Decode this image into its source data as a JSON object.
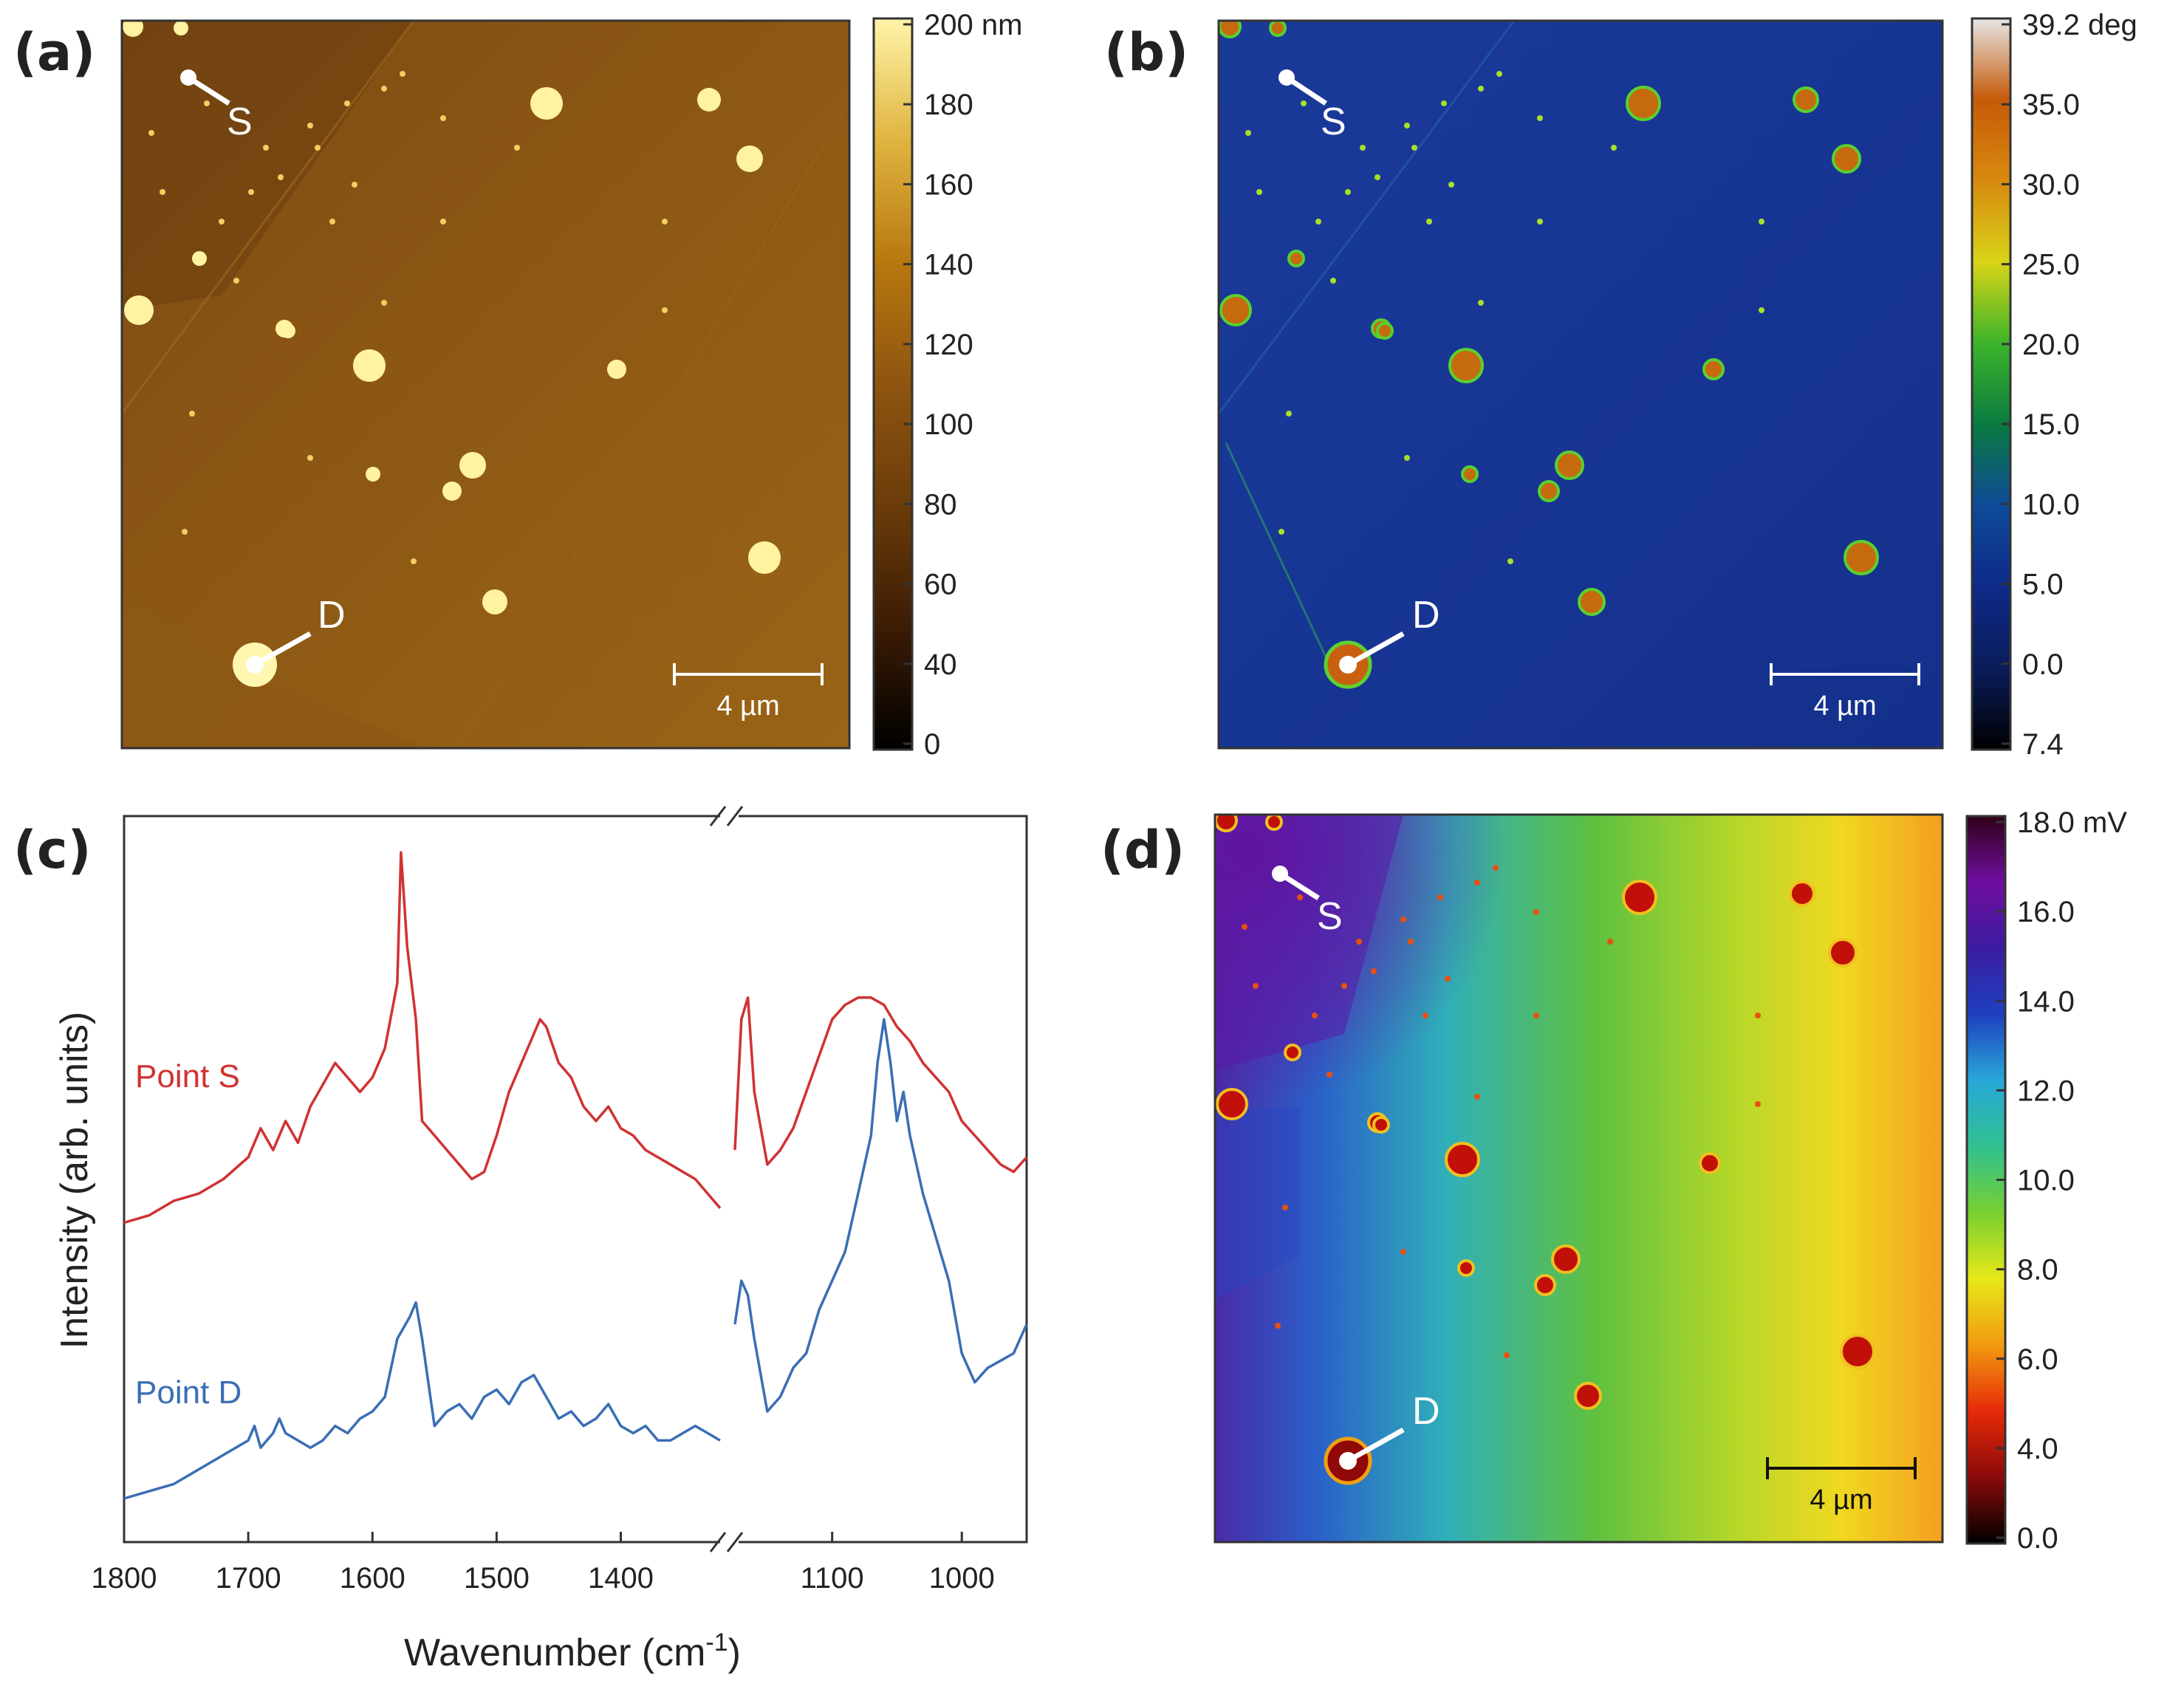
{
  "colors": {
    "topo_stops": [
      "#000000",
      "#3c1c05",
      "#6b3c0a",
      "#8f5510",
      "#b8780f",
      "#e0b440",
      "#fff4a8"
    ],
    "phase_stops": [
      "#000000",
      "#0a1c5a",
      "#0e2a88",
      "#0e4a98",
      "#0a7a40",
      "#3cb42a",
      "#d8d418",
      "#d88a10",
      "#c65a08",
      "#e6e6e6"
    ],
    "kpfm_stops": [
      "#000000",
      "#8a0a0a",
      "#e62a08",
      "#f29a10",
      "#e8e818",
      "#78d030",
      "#30c090",
      "#28a8d8",
      "#1e40c0",
      "#3a1ca0",
      "#700ea0",
      "#300018"
    ],
    "point_s": "#d03232",
    "point_d": "#3a6eb4"
  },
  "panels": {
    "a": {
      "label": "(a)",
      "scalebar": "4 µm",
      "colorbar": {
        "labels": [
          "200 nm",
          "180",
          "160",
          "140",
          "120",
          "100",
          "80",
          "60",
          "40",
          "0"
        ]
      },
      "markers": {
        "s": "S",
        "d": "D"
      }
    },
    "b": {
      "label": "(b)",
      "scalebar": "4 µm",
      "colorbar": {
        "labels": [
          "39.2 deg",
          "35.0",
          "30.0",
          "25.0",
          "20.0",
          "15.0",
          "10.0",
          "5.0",
          "0.0",
          "7.4"
        ]
      },
      "markers": {
        "s": "S",
        "d": "D"
      }
    },
    "c": {
      "label": "(c)"
    },
    "d": {
      "label": "(d)",
      "scalebar": "4 µm",
      "colorbar": {
        "labels": [
          "18.0 mV",
          "16.0",
          "14.0",
          "12.0",
          "10.0",
          "8.0",
          "6.0",
          "4.0",
          "0.0"
        ]
      },
      "markers": {
        "s": "S",
        "d": "D"
      }
    }
  },
  "chart_data": {
    "type": "line",
    "title": "",
    "xlabel": "Wavenumber (cm",
    "xlabel_sup": "-1",
    "xlabel_close": ")",
    "ylabel": "Intensity (arb. units)",
    "x_break": true,
    "x_segments": [
      {
        "xlim": [
          1800,
          1320
        ],
        "ticks": [
          "1800",
          "1700",
          "1600",
          "1500",
          "1400"
        ],
        "tick_values": [
          1800,
          1700,
          1600,
          1500,
          1400
        ]
      },
      {
        "xlim": [
          1175,
          950
        ],
        "ticks": [
          "1100",
          "1000"
        ],
        "tick_values": [
          1100,
          1000
        ]
      }
    ],
    "ylim": [
      0,
      100
    ],
    "series": [
      {
        "name": "Point S",
        "seg1": {
          "x": [
            1800,
            1780,
            1760,
            1740,
            1720,
            1700,
            1690,
            1680,
            1670,
            1660,
            1650,
            1640,
            1630,
            1620,
            1610,
            1600,
            1590,
            1580,
            1577,
            1572,
            1565,
            1560,
            1550,
            1540,
            1530,
            1520,
            1510,
            1500,
            1490,
            1480,
            1470,
            1465,
            1460,
            1450,
            1440,
            1430,
            1420,
            1410,
            1400,
            1390,
            1380,
            1370,
            1360,
            1350,
            1340,
            1330,
            1320
          ],
          "y": [
            44,
            45,
            47,
            48,
            50,
            53,
            57,
            54,
            58,
            55,
            60,
            63,
            66,
            64,
            62,
            64,
            68,
            77,
            95,
            82,
            72,
            58,
            56,
            54,
            52,
            50,
            51,
            56,
            62,
            66,
            70,
            72,
            71,
            66,
            64,
            60,
            58,
            60,
            57,
            56,
            54,
            53,
            52,
            51,
            50,
            48,
            46
          ]
        },
        "seg2": {
          "x": [
            1175,
            1170,
            1165,
            1160,
            1150,
            1140,
            1130,
            1120,
            1110,
            1100,
            1090,
            1080,
            1070,
            1060,
            1050,
            1040,
            1030,
            1020,
            1010,
            1000,
            990,
            980,
            970,
            960,
            950
          ],
          "y": [
            54,
            72,
            75,
            62,
            52,
            54,
            57,
            62,
            67,
            72,
            74,
            75,
            75,
            74,
            71,
            69,
            66,
            64,
            62,
            58,
            56,
            54,
            52,
            51,
            53
          ]
        }
      },
      {
        "name": "Point D",
        "seg1": {
          "x": [
            1800,
            1780,
            1760,
            1740,
            1720,
            1700,
            1695,
            1690,
            1680,
            1675,
            1670,
            1660,
            1650,
            1640,
            1630,
            1620,
            1610,
            1600,
            1590,
            1580,
            1570,
            1565,
            1560,
            1555,
            1550,
            1540,
            1530,
            1520,
            1510,
            1500,
            1490,
            1480,
            1470,
            1460,
            1450,
            1440,
            1430,
            1420,
            1410,
            1400,
            1390,
            1380,
            1370,
            1360,
            1350,
            1340,
            1330,
            1320
          ],
          "y": [
            6,
            7,
            8,
            10,
            12,
            14,
            16,
            13,
            15,
            17,
            15,
            14,
            13,
            14,
            16,
            15,
            17,
            18,
            20,
            28,
            31,
            33,
            28,
            22,
            16,
            18,
            19,
            17,
            20,
            21,
            19,
            22,
            23,
            20,
            17,
            18,
            16,
            17,
            19,
            16,
            15,
            16,
            14,
            14,
            15,
            16,
            15,
            14
          ]
        },
        "seg2": {
          "x": [
            1175,
            1170,
            1165,
            1160,
            1150,
            1140,
            1130,
            1120,
            1110,
            1100,
            1090,
            1080,
            1070,
            1065,
            1060,
            1055,
            1050,
            1045,
            1040,
            1030,
            1020,
            1010,
            1000,
            990,
            980,
            970,
            960,
            950
          ],
          "y": [
            30,
            36,
            34,
            28,
            18,
            20,
            24,
            26,
            32,
            36,
            40,
            48,
            56,
            66,
            72,
            66,
            58,
            62,
            56,
            48,
            42,
            36,
            26,
            22,
            24,
            25,
            26,
            30
          ]
        }
      }
    ],
    "annotations": [
      {
        "text": "Point S",
        "series": "Point S"
      },
      {
        "text": "Point D",
        "series": "Point D"
      }
    ]
  }
}
